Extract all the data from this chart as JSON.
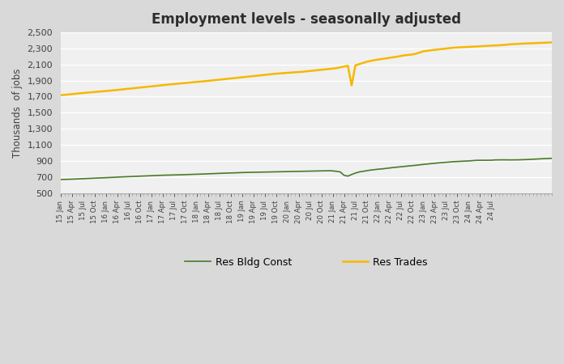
{
  "title": "Employment levels - seasonally adjusted",
  "ylabel": "Thousands  of jobs",
  "ylim": [
    500,
    2500
  ],
  "yticks": [
    500,
    700,
    900,
    1100,
    1300,
    1500,
    1700,
    1900,
    2100,
    2300,
    2500
  ],
  "outer_bg": "#d9d9d9",
  "plot_bg": "#f0f0f0",
  "green_color": "#4a7a28",
  "gold_color": "#f5b800",
  "legend_entries": [
    "Res Bldg Const",
    "Res Trades"
  ],
  "x_tick_labels": [
    "15 Jan",
    "15 Apr",
    "15 Jul",
    "15 Oct",
    "16 Jan",
    "16 Apr",
    "16 Jul",
    "16 Oct",
    "17 Jan",
    "17 Apr",
    "17 Jul",
    "17 Oct",
    "18 Jan",
    "18 Apr",
    "18 Jul",
    "18 Oct",
    "19 Jan",
    "19 Apr",
    "19 Jul",
    "19 Oct",
    "20 Jan",
    "20 Apr",
    "20 Jul",
    "20 Oct",
    "21 Jan",
    "21 Apr",
    "21 Jul",
    "21 Oct",
    "22 Jan",
    "22 Apr",
    "22 Jul",
    "22 Oct",
    "23 Jan",
    "23 Apr",
    "23 Jul",
    "23 Oct",
    "24 Jan",
    "24 Apr",
    "24 Jul"
  ],
  "res_bldg_const": [
    668,
    669,
    671,
    672,
    674,
    676,
    677,
    679,
    681,
    683,
    685,
    687,
    690,
    693,
    695,
    698,
    700,
    702,
    705,
    707,
    709,
    711,
    713,
    715,
    716,
    718,
    719,
    721,
    722,
    723,
    724,
    726,
    727,
    729,
    730,
    732,
    733,
    735,
    737,
    739,
    741,
    743,
    744,
    746,
    748,
    749,
    751,
    753,
    754,
    756,
    757,
    758,
    759,
    761,
    762,
    763,
    764,
    765,
    766,
    767,
    768,
    769,
    770,
    771,
    772,
    773,
    774,
    775,
    776,
    777,
    778,
    777,
    775,
    770,
    762,
    720,
    710,
    730,
    748,
    762,
    770,
    778,
    785,
    791,
    796,
    800,
    806,
    812,
    817,
    822,
    827,
    832,
    836,
    840,
    845,
    851,
    856,
    861,
    866,
    870,
    875,
    879,
    883,
    887,
    890,
    893,
    895,
    897,
    899,
    903,
    907,
    907,
    906,
    907,
    908,
    912,
    913,
    913,
    912,
    912,
    912,
    913,
    914,
    916,
    918,
    920,
    923,
    926,
    928,
    930,
    932
  ],
  "res_trades": [
    1718,
    1722,
    1727,
    1732,
    1736,
    1741,
    1746,
    1750,
    1755,
    1759,
    1763,
    1767,
    1771,
    1775,
    1779,
    1784,
    1788,
    1793,
    1798,
    1803,
    1808,
    1813,
    1818,
    1823,
    1828,
    1833,
    1838,
    1843,
    1848,
    1853,
    1857,
    1861,
    1866,
    1871,
    1875,
    1879,
    1883,
    1887,
    1892,
    1897,
    1902,
    1907,
    1912,
    1917,
    1922,
    1927,
    1932,
    1937,
    1942,
    1947,
    1952,
    1957,
    1962,
    1967,
    1972,
    1977,
    1982,
    1986,
    1990,
    1994,
    1997,
    2000,
    2003,
    2006,
    2010,
    2015,
    2020,
    2025,
    2030,
    2035,
    2040,
    2045,
    2050,
    2055,
    2065,
    2075,
    2085,
    1840,
    2090,
    2105,
    2120,
    2135,
    2145,
    2155,
    2162,
    2168,
    2175,
    2182,
    2190,
    2198,
    2207,
    2215,
    2220,
    2225,
    2235,
    2250,
    2265,
    2272,
    2278,
    2283,
    2288,
    2294,
    2300,
    2305,
    2310,
    2313,
    2315,
    2318,
    2320,
    2323,
    2325,
    2328,
    2330,
    2333,
    2335,
    2337,
    2340,
    2343,
    2348,
    2352,
    2355,
    2358,
    2360,
    2362,
    2364,
    2366,
    2368,
    2370,
    2372,
    2374,
    2376
  ]
}
